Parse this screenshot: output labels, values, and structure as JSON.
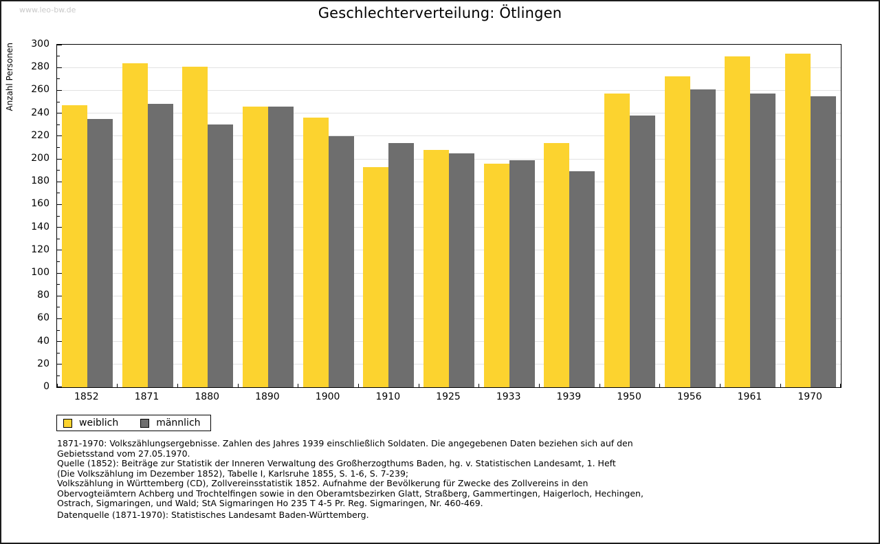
{
  "page": {
    "watermark": "www.leo-bw.de",
    "title": "Geschlechterverteilung: Ötlingen"
  },
  "chart_data": {
    "type": "bar",
    "title": "Geschlechterverteilung: Ötlingen",
    "xlabel": "",
    "ylabel": "Anzahl Personen",
    "ylim": [
      0,
      300
    ],
    "ytick_step": 20,
    "ytick_minor_step": 10,
    "grid": true,
    "legend_position": "bottom-left",
    "categories": [
      "1852",
      "1871",
      "1880",
      "1890",
      "1900",
      "1910",
      "1925",
      "1933",
      "1939",
      "1950",
      "1956",
      "1961",
      "1970"
    ],
    "series": [
      {
        "name": "weiblich",
        "color": "#fcd32f",
        "values": [
          247,
          284,
          281,
          246,
          236,
          193,
          208,
          196,
          214,
          257,
          272,
          290,
          292
        ]
      },
      {
        "name": "männlich",
        "color": "#6e6e6e",
        "values": [
          235,
          248,
          230,
          246,
          220,
          214,
          205,
          199,
          189,
          238,
          261,
          257,
          255
        ]
      }
    ]
  },
  "footnotes": {
    "lines": [
      "1871-1970: Volkszählungsergebnisse. Zahlen des Jahres 1939 einschließlich Soldaten. Die angegebenen Daten beziehen sich auf den",
      "Gebietsstand vom 27.05.1970.",
      "Quelle (1852): Beiträge zur Statistik der Inneren Verwaltung des Großherzogthums Baden, hg. v. Statistischen Landesamt, 1. Heft",
      "(Die Volkszählung im Dezember 1852), Tabelle I, Karlsruhe 1855, S. 1-6, S. 7-239;",
      "Volkszählung in Württemberg (CD), Zollvereinsstatistik 1852. Aufnahme der Bevölkerung für Zwecke des Zollvereins in den",
      "Obervogteiämtern Achberg und Trochtelfingen sowie in den Oberamtsbezirken Glatt, Straßberg, Gammertingen, Haigerloch, Hechingen,",
      "Ostrach, Sigmaringen, und Wald; StA Sigmaringen Ho 235 T 4-5 Pr. Reg. Sigmaringen, Nr. 460-469."
    ],
    "datasource": "Datenquelle (1871-1970): Statistisches Landesamt Baden-Württemberg."
  },
  "colors": {
    "bar_weiblich": "#fcd32f",
    "bar_maennlich": "#6e6e6e",
    "gridline": "#e2e2e2",
    "watermark": "#c9c9c9",
    "frame": "#000000"
  }
}
